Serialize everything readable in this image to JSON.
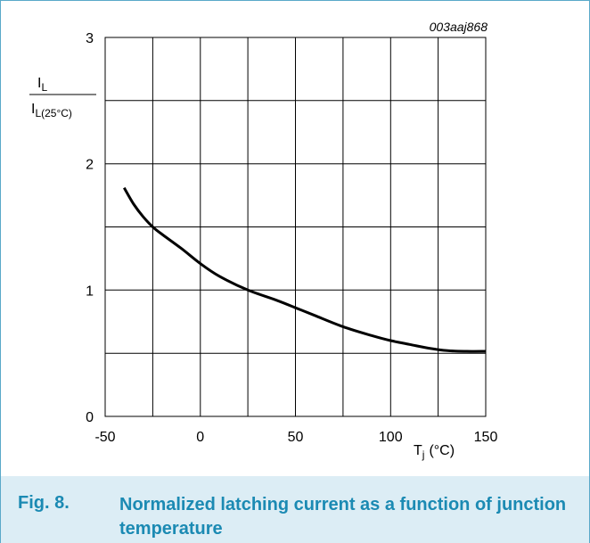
{
  "figure": {
    "code": "003aaj868",
    "caption_number": "Fig. 8.",
    "caption_text": "Normalized latching current as a function of junction temperature"
  },
  "chart_data": {
    "type": "line",
    "title": "",
    "ylabel": {
      "numerator": "I",
      "numerator_sub": "L",
      "denominator": "I",
      "denominator_sub": "L(25°C)"
    },
    "xlabel": {
      "main": "T",
      "sub": "j",
      "unit": "(°C)"
    },
    "xlim": [
      -50,
      150
    ],
    "ylim": [
      0,
      3
    ],
    "x_ticks": [
      "-50",
      "0",
      "50",
      "100",
      "150"
    ],
    "y_ticks": [
      "0",
      "1",
      "2",
      "3"
    ],
    "grid": true,
    "series": [
      {
        "color": "#000000",
        "points": [
          [
            -40,
            1.81
          ],
          [
            -35,
            1.68
          ],
          [
            -30,
            1.58
          ],
          [
            -25,
            1.5
          ],
          [
            -20,
            1.44
          ],
          [
            -10,
            1.33
          ],
          [
            0,
            1.21
          ],
          [
            10,
            1.11
          ],
          [
            25,
            1.0
          ],
          [
            40,
            0.92
          ],
          [
            50,
            0.86
          ],
          [
            60,
            0.8
          ],
          [
            75,
            0.71
          ],
          [
            90,
            0.64
          ],
          [
            100,
            0.6
          ],
          [
            110,
            0.57
          ],
          [
            120,
            0.54
          ],
          [
            130,
            0.52
          ],
          [
            140,
            0.515
          ],
          [
            150,
            0.515
          ]
        ]
      }
    ]
  },
  "colors": {
    "caption_text": "#1b8ab3",
    "caption_bg": "#dcedf5",
    "frame": "#5aa9c9"
  }
}
